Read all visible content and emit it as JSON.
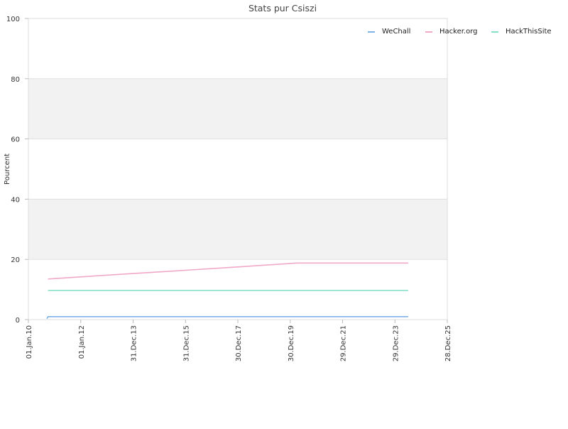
{
  "chart_data": {
    "type": "line",
    "title": "Stats pur Csiszi",
    "ylabel": "Pourcent",
    "xlabel": "",
    "ylim": [
      0,
      100
    ],
    "xlim": [
      "2010-01-01",
      "2025-12-28"
    ],
    "y_ticks": [
      "0",
      "20",
      "40",
      "60",
      "80",
      "100"
    ],
    "x_ticks": [
      "01.Jan.10",
      "01.Jan.12",
      "31.Dec.13",
      "31.Dec.15",
      "30.Dec.17",
      "30.Dec.19",
      "29.Dec.21",
      "29.Dec.23",
      "28.Dec.25"
    ],
    "grid": true,
    "alternating_bands": true,
    "legend_position": "top-right",
    "series": [
      {
        "name": "WeChall",
        "color": "#7fb2e6",
        "x": [
          "2010-09-15",
          "2010-10-01",
          "2024-07-01"
        ],
        "y": [
          0.3,
          1.0,
          1.0
        ]
      },
      {
        "name": "Hacker.org",
        "color": "#f0a8c8",
        "x": [
          "2010-10-01",
          "2012-01-01",
          "2014-01-01",
          "2016-01-01",
          "2018-01-01",
          "2020-04-01",
          "2024-07-01"
        ],
        "y": [
          13.5,
          14.2,
          15.3,
          16.4,
          17.5,
          18.8,
          18.8
        ]
      },
      {
        "name": "HackThisSite",
        "color": "#88e0c8",
        "x": [
          "2010-10-01",
          "2024-07-01"
        ],
        "y": [
          9.7,
          9.7
        ]
      }
    ]
  }
}
